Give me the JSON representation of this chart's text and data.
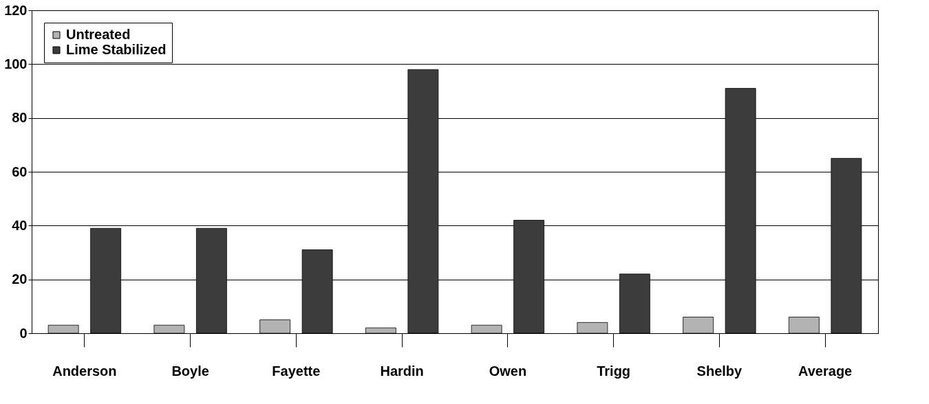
{
  "chart_data": {
    "type": "bar",
    "categories": [
      "Anderson",
      "Boyle",
      "Fayette",
      "Hardin",
      "Owen",
      "Trigg",
      "Shelby",
      "Average"
    ],
    "series": [
      {
        "name": "Untreated",
        "color": "#b3b3b3",
        "values": [
          3,
          3,
          5,
          2,
          3,
          4,
          6,
          6
        ]
      },
      {
        "name": "Lime Stabilized",
        "color": "#3c3c3c",
        "values": [
          39,
          39,
          31,
          98,
          42,
          22,
          91,
          65
        ]
      }
    ],
    "ylim": [
      0,
      120
    ],
    "yticks": [
      0,
      20,
      40,
      60,
      80,
      100,
      120
    ],
    "grid": "y",
    "legend": "top left"
  }
}
